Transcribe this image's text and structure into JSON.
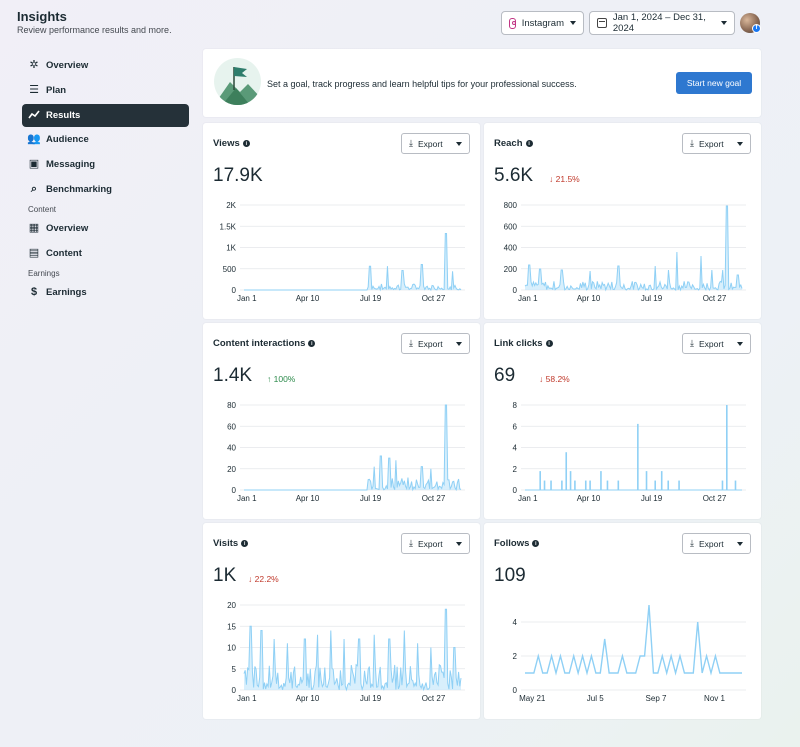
{
  "header": {
    "title": "Insights",
    "subtitle": "Review performance results and more.",
    "platform": "Instagram",
    "date_range": "Jan 1, 2024 – Dec 31, 2024"
  },
  "sidebar": {
    "items": [
      {
        "label": "Overview",
        "icon": "hub-icon"
      },
      {
        "label": "Plan",
        "icon": "list-icon"
      },
      {
        "label": "Results",
        "icon": "trend-icon",
        "active": true
      },
      {
        "label": "Audience",
        "icon": "people-icon"
      },
      {
        "label": "Messaging",
        "icon": "chat-icon"
      },
      {
        "label": "Benchmarking",
        "icon": "benchmark-icon"
      }
    ],
    "content_section": "Content",
    "content_items": [
      {
        "label": "Overview",
        "icon": "grid-icon"
      },
      {
        "label": "Content",
        "icon": "table-icon"
      }
    ],
    "earnings_section": "Earnings",
    "earnings_items": [
      {
        "label": "Earnings",
        "icon": "dollar-icon"
      }
    ]
  },
  "goal": {
    "text": "Set a goal, track progress and learn helpful tips for your professional success.",
    "button": "Start new goal"
  },
  "export_label": "Export",
  "metrics": [
    {
      "id": "views",
      "title": "Views",
      "info": true,
      "value": "17.9K",
      "change": "",
      "direction": ""
    },
    {
      "id": "reach",
      "title": "Reach",
      "info": true,
      "value": "5.6K",
      "change": "21.5%",
      "direction": "down"
    },
    {
      "id": "interactions",
      "title": "Content interactions",
      "info": true,
      "value": "1.4K",
      "change": "100%",
      "direction": "up"
    },
    {
      "id": "linkclicks",
      "title": "Link clicks",
      "info": true,
      "value": "69",
      "change": "58.2%",
      "direction": "down"
    },
    {
      "id": "visits",
      "title": "Visits",
      "info": true,
      "value": "1K",
      "change": "22.2%",
      "direction": "down"
    },
    {
      "id": "follows",
      "title": "Follows",
      "info": true,
      "value": "109",
      "change": "",
      "direction": ""
    }
  ],
  "chart_data": [
    {
      "id": "views",
      "type": "line",
      "x_ticks": [
        "Jan 1",
        "Apr 10",
        "Jul 19",
        "Oct 27"
      ],
      "y_ticks": [
        "0",
        "500",
        "1K",
        "1.5K",
        "2K"
      ],
      "ylim": [
        0,
        2000
      ],
      "peaks": [
        [
          0.58,
          560
        ],
        [
          0.66,
          560
        ],
        [
          0.73,
          460
        ],
        [
          0.82,
          600
        ],
        [
          0.93,
          1330
        ],
        [
          0.96,
          440
        ]
      ],
      "baseline_start": 0.57,
      "noise": 150
    },
    {
      "id": "reach",
      "type": "line",
      "x_ticks": [
        "Jan 1",
        "Apr 10",
        "Jul 19",
        "Oct 27"
      ],
      "y_ticks": [
        "0",
        "200",
        "400",
        "600",
        "800"
      ],
      "ylim": [
        0,
        850
      ],
      "peaks": [
        [
          0.02,
          250
        ],
        [
          0.07,
          210
        ],
        [
          0.17,
          200
        ],
        [
          0.3,
          190
        ],
        [
          0.43,
          240
        ],
        [
          0.6,
          240
        ],
        [
          0.66,
          200
        ],
        [
          0.7,
          380
        ],
        [
          0.81,
          340
        ],
        [
          0.86,
          200
        ],
        [
          0.91,
          200
        ],
        [
          0.93,
          840
        ],
        [
          0.98,
          150
        ]
      ],
      "baseline_start": 0,
      "noise": 90
    },
    {
      "id": "interactions",
      "type": "line",
      "x_ticks": [
        "Jan 1",
        "Apr 10",
        "Jul 19",
        "Oct 27"
      ],
      "y_ticks": [
        "0",
        "20",
        "40",
        "60",
        "80"
      ],
      "ylim": [
        0,
        80
      ],
      "peaks": [
        [
          0.6,
          22
        ],
        [
          0.63,
          32
        ],
        [
          0.67,
          30
        ],
        [
          0.7,
          28
        ],
        [
          0.82,
          22
        ],
        [
          0.86,
          20
        ],
        [
          0.93,
          80
        ]
      ],
      "baseline_start": 0.57,
      "noise": 12
    },
    {
      "id": "linkclicks",
      "type": "bar",
      "x_ticks": [
        "Jan 1",
        "Apr 10",
        "Jul 19",
        "Oct 27"
      ],
      "y_ticks": [
        "0",
        "2",
        "4",
        "6",
        "8"
      ],
      "ylim": [
        0,
        9
      ],
      "peaks": [
        [
          0.07,
          2
        ],
        [
          0.09,
          1
        ],
        [
          0.12,
          1
        ],
        [
          0.17,
          1
        ],
        [
          0.19,
          4
        ],
        [
          0.21,
          2
        ],
        [
          0.23,
          1
        ],
        [
          0.28,
          1
        ],
        [
          0.3,
          1
        ],
        [
          0.35,
          2
        ],
        [
          0.38,
          1
        ],
        [
          0.43,
          1
        ],
        [
          0.52,
          7
        ],
        [
          0.56,
          2
        ],
        [
          0.6,
          1
        ],
        [
          0.63,
          2
        ],
        [
          0.66,
          1
        ],
        [
          0.71,
          1
        ],
        [
          0.91,
          1
        ],
        [
          0.93,
          9
        ],
        [
          0.97,
          1
        ]
      ]
    },
    {
      "id": "visits",
      "type": "line",
      "x_ticks": [
        "Jan 1",
        "Apr 10",
        "Jul 19",
        "Oct 27"
      ],
      "y_ticks": [
        "0",
        "5",
        "10",
        "15",
        "20"
      ],
      "ylim": [
        0,
        20
      ],
      "peaks": [
        [
          0.03,
          15
        ],
        [
          0.08,
          14
        ],
        [
          0.14,
          12
        ],
        [
          0.2,
          11
        ],
        [
          0.28,
          12
        ],
        [
          0.34,
          13
        ],
        [
          0.4,
          14
        ],
        [
          0.46,
          12
        ],
        [
          0.53,
          12
        ],
        [
          0.6,
          13
        ],
        [
          0.67,
          12
        ],
        [
          0.74,
          14
        ],
        [
          0.8,
          11
        ],
        [
          0.86,
          10
        ],
        [
          0.93,
          19
        ],
        [
          0.97,
          10
        ]
      ],
      "baseline_start": 0,
      "noise": 6
    },
    {
      "id": "follows",
      "type": "line",
      "x_ticks": [
        "May 21",
        "Jul 5",
        "Sep 7",
        "Nov 1"
      ],
      "y_ticks": [
        "0",
        "2",
        "4"
      ],
      "ylim": [
        0,
        5
      ],
      "values": [
        1,
        1,
        1,
        2,
        1,
        1,
        2,
        1,
        2,
        1,
        1,
        2,
        1,
        2,
        1,
        2,
        1,
        1,
        3,
        1,
        1,
        1,
        2,
        1,
        1,
        1,
        2,
        2,
        5,
        1,
        1,
        2,
        1,
        2,
        1,
        2,
        1,
        1,
        1,
        4,
        1,
        2,
        1,
        2,
        1,
        1,
        1,
        1,
        1,
        1
      ]
    }
  ],
  "colors": {
    "line": "#8fd0f5",
    "fill": "#c7e8fb",
    "grid": "#e4e6ea",
    "accent": "#2e78d0",
    "active": "#253139"
  }
}
